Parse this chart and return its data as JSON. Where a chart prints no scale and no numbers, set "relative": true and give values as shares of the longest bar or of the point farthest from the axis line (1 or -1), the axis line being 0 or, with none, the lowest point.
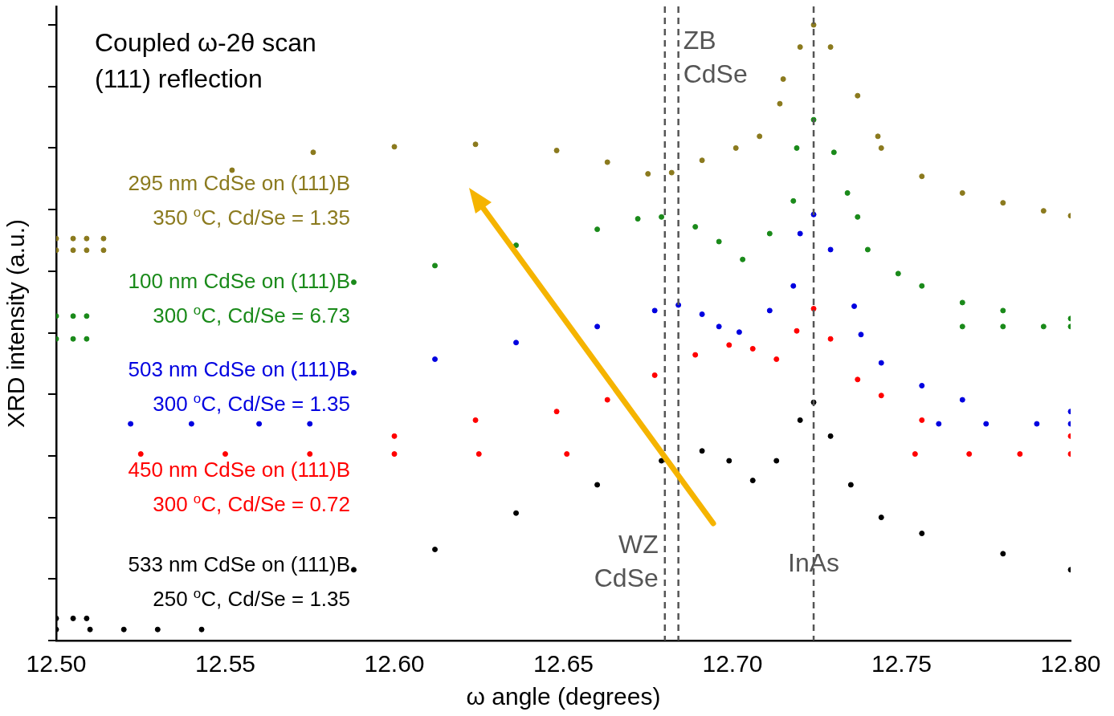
{
  "chart_data": {
    "type": "scatter",
    "title": "Coupled ω-2θ scan\n(111) reflection",
    "xlabel": "ω angle (degrees)",
    "ylabel": "XRD intensity (a.u.)",
    "relative": true,
    "marker": "circle",
    "legend": false,
    "xlim": [
      12.5,
      12.8
    ],
    "xticks": [
      {
        "value": 12.5,
        "label": "12.50"
      },
      {
        "value": 12.55,
        "label": "12.55"
      },
      {
        "value": 12.6,
        "label": "12.60"
      },
      {
        "value": 12.65,
        "label": "12.65"
      },
      {
        "value": 12.7,
        "label": "12.70"
      },
      {
        "value": 12.75,
        "label": "12.75"
      },
      {
        "value": 12.8,
        "label": "12.80"
      }
    ],
    "ref_lines": [
      {
        "axis": "x",
        "value": 12.68,
        "label": "WZ\nCdSe",
        "color": "#555555",
        "line_style": "dashed"
      },
      {
        "axis": "x",
        "value": 12.684,
        "label": "ZB\nCdSe",
        "color": "#555555",
        "line_style": "dashed"
      },
      {
        "axis": "x",
        "value": 12.724,
        "label": "InAs",
        "color": "#555555",
        "line_style": "dashed"
      }
    ],
    "series": [
      {
        "name": "295 nm CdSe on (111)B\n350 $^{o}$C, Cd/Se = 1.35",
        "color": "#8b7a1e",
        "x": [
          12.5,
          12.505,
          12.509,
          12.514,
          12.5,
          12.505,
          12.509,
          12.514,
          12.552,
          12.576,
          12.6,
          12.624,
          12.648,
          12.663,
          12.675,
          12.682,
          12.691,
          12.701,
          12.708,
          12.714,
          12.715,
          12.72,
          12.724,
          12.729,
          12.737,
          12.743,
          12.744,
          12.756,
          12.768,
          12.78,
          12.792,
          12.8
        ],
        "values": [
          0.653,
          0.653,
          0.653,
          0.653,
          0.634,
          0.634,
          0.634,
          0.634,
          0.764,
          0.793,
          0.802,
          0.806,
          0.796,
          0.777,
          0.758,
          0.76,
          0.78,
          0.8,
          0.819,
          0.872,
          0.912,
          0.964,
          1,
          0.964,
          0.885,
          0.819,
          0.8,
          0.754,
          0.727,
          0.711,
          0.698,
          0.69
        ]
      },
      {
        "name": "100 nm CdSe on (111)B\n300 $^{o}$C, Cd/Se = 6.73",
        "color": "#1a8a1a",
        "x": [
          12.5,
          12.505,
          12.509,
          12.5,
          12.505,
          12.509,
          12.588,
          12.612,
          12.636,
          12.66,
          12.672,
          12.679,
          12.689,
          12.696,
          12.703,
          12.711,
          12.718,
          12.719,
          12.724,
          12.73,
          12.734,
          12.737,
          12.74,
          12.749,
          12.756,
          12.768,
          12.78,
          12.8,
          12.768,
          12.78,
          12.792,
          12.8
        ],
        "values": [
          0.527,
          0.527,
          0.527,
          0.49,
          0.49,
          0.49,
          0.582,
          0.609,
          0.642,
          0.668,
          0.685,
          0.688,
          0.672,
          0.648,
          0.619,
          0.661,
          0.714,
          0.8,
          0.846,
          0.793,
          0.727,
          0.688,
          0.635,
          0.596,
          0.576,
          0.549,
          0.536,
          0.523,
          0.51,
          0.51,
          0.51,
          0.51
        ]
      },
      {
        "name": "503 nm CdSe on (111)B\n300 $^{o}$C, Cd/Se = 1.35",
        "color": "#0000e0",
        "x": [
          12.522,
          12.54,
          12.56,
          12.575,
          12.588,
          12.612,
          12.636,
          12.66,
          12.677,
          12.684,
          12.691,
          12.696,
          12.702,
          12.711,
          12.718,
          12.72,
          12.724,
          12.729,
          12.736,
          12.738,
          12.744,
          12.756,
          12.768,
          12.8,
          12.761,
          12.775,
          12.79,
          12.8
        ],
        "values": [
          0.352,
          0.352,
          0.352,
          0.352,
          0.435,
          0.457,
          0.484,
          0.51,
          0.536,
          0.545,
          0.53,
          0.51,
          0.501,
          0.536,
          0.576,
          0.661,
          0.692,
          0.635,
          0.543,
          0.497,
          0.451,
          0.414,
          0.391,
          0.372,
          0.352,
          0.352,
          0.352,
          0.352
        ]
      },
      {
        "name": "450 nm CdSe on (111)B\n300 $^{o}$C, Cd/Se = 0.72",
        "color": "#ff0000",
        "x": [
          12.525,
          12.55,
          12.575,
          12.6,
          12.625,
          12.651,
          12.6,
          12.624,
          12.648,
          12.663,
          12.677,
          12.689,
          12.699,
          12.706,
          12.713,
          12.719,
          12.724,
          12.729,
          12.737,
          12.744,
          12.756,
          12.8,
          12.754,
          12.77,
          12.785,
          12.8
        ],
        "values": [
          0.303,
          0.303,
          0.303,
          0.303,
          0.303,
          0.303,
          0.332,
          0.358,
          0.372,
          0.391,
          0.431,
          0.464,
          0.48,
          0.474,
          0.457,
          0.503,
          0.539,
          0.49,
          0.424,
          0.398,
          0.358,
          0.332,
          0.303,
          0.303,
          0.303,
          0.303
        ]
      },
      {
        "name": "533 nm CdSe on (111)B\n250 $^{o}$C, Cd/Se = 1.35",
        "color": "#000000",
        "x": [
          12.5,
          12.51,
          12.52,
          12.53,
          12.543,
          12.5,
          12.505,
          12.509,
          12.588,
          12.612,
          12.636,
          12.66,
          12.679,
          12.691,
          12.699,
          12.706,
          12.713,
          12.72,
          12.724,
          12.729,
          12.735,
          12.744,
          12.756,
          12.78,
          12.8
        ],
        "values": [
          0.018,
          0.018,
          0.018,
          0.018,
          0.018,
          0.036,
          0.036,
          0.036,
          0.115,
          0.148,
          0.207,
          0.253,
          0.292,
          0.308,
          0.292,
          0.26,
          0.292,
          0.358,
          0.387,
          0.332,
          0.253,
          0.2,
          0.174,
          0.141,
          0.115
        ]
      }
    ]
  }
}
